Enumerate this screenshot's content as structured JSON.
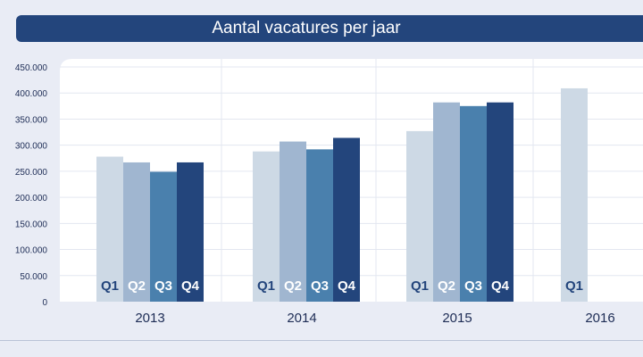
{
  "chart_data": {
    "type": "bar",
    "title": "Aantal vacatures per jaar",
    "categories": [
      "2013",
      "2014",
      "2015",
      "2016"
    ],
    "series": [
      {
        "name": "Q1",
        "color": "#cdd9e5",
        "values": [
          278000,
          288000,
          327000,
          409000
        ]
      },
      {
        "name": "Q2",
        "color": "#a0b6d0",
        "values": [
          267000,
          307000,
          382000,
          null
        ]
      },
      {
        "name": "Q3",
        "color": "#4a80ad",
        "values": [
          249000,
          292000,
          375000,
          null
        ]
      },
      {
        "name": "Q4",
        "color": "#23457c",
        "values": [
          267000,
          314000,
          382000,
          null
        ]
      }
    ],
    "ylim": [
      0,
      450000
    ],
    "yticks": [
      "0",
      "50.000",
      "100.000",
      "150.000",
      "200.000",
      "250.000",
      "300.000",
      "350.000",
      "400.000",
      "450.000"
    ],
    "xlabel": "",
    "ylabel": "",
    "grid": true,
    "legend": "none"
  }
}
